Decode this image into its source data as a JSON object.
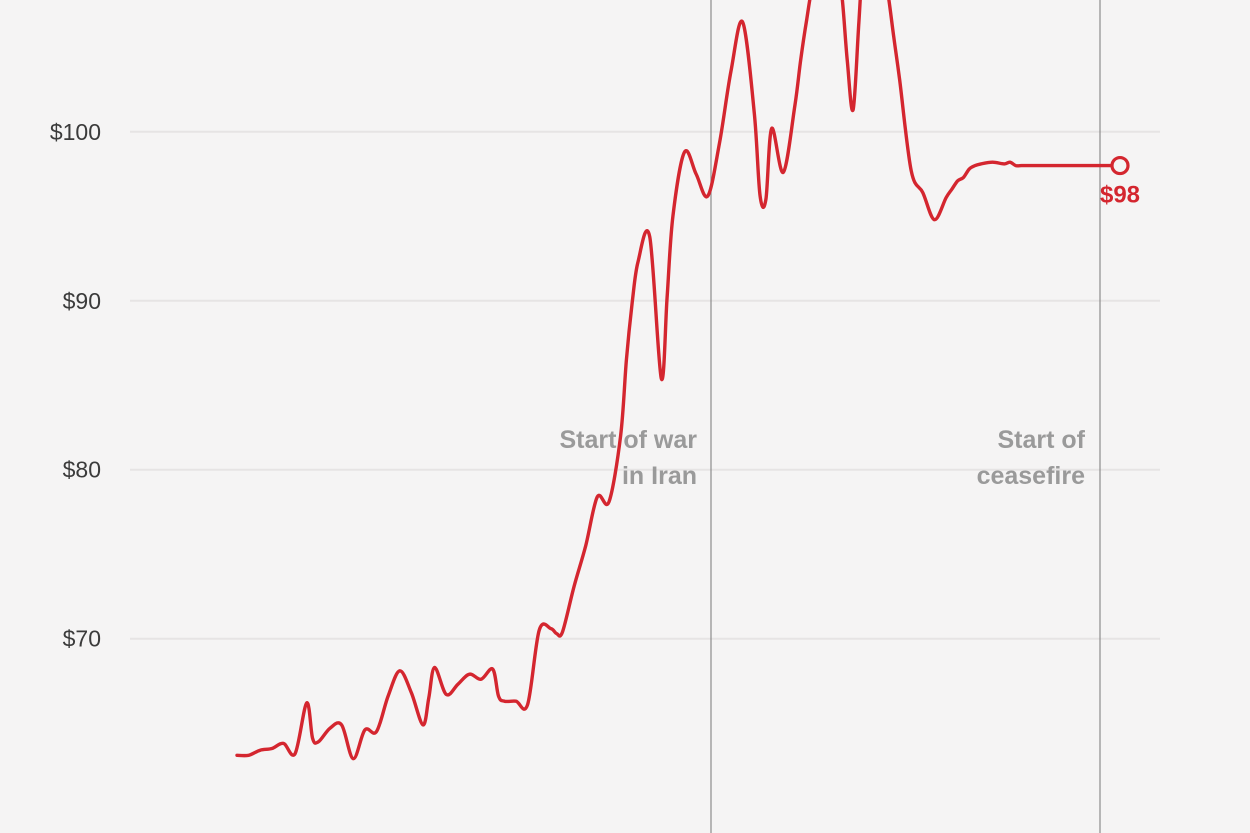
{
  "chart_data": {
    "type": "line",
    "title": "",
    "xlabel": "",
    "ylabel": "",
    "ylim": [
      58.5,
      107.8
    ],
    "yticks": [
      {
        "value": 70,
        "label": "$70"
      },
      {
        "value": 80,
        "label": "$80"
      },
      {
        "value": 90,
        "label": "$90"
      },
      {
        "value": 100,
        "label": "$100"
      }
    ],
    "grid": "horizontal",
    "series": [
      {
        "color": "#d4262f",
        "x": [
          0,
          4,
          8,
          12,
          16,
          20,
          24,
          26,
          28,
          32,
          36,
          40,
          44,
          48,
          52,
          56,
          60,
          64,
          66,
          68,
          72,
          76,
          80,
          84,
          88,
          90,
          92,
          96,
          100,
          104,
          108,
          110,
          112,
          116,
          120,
          124,
          128,
          132,
          134,
          136,
          138,
          142,
          146,
          148,
          150,
          154,
          158,
          162,
          166,
          170,
          174,
          178,
          180,
          182,
          184,
          188,
          192,
          194,
          196,
          198,
          200,
          202,
          204,
          206,
          208,
          210,
          212,
          214,
          216,
          218,
          220,
          222,
          224,
          226,
          228,
          232,
          236,
          240,
          244,
          246,
          248,
          250,
          252,
          254,
          256,
          260,
          264,
          266,
          268,
          270,
          272,
          274,
          276,
          280,
          282,
          284,
          286,
          288,
          290,
          292,
          294,
          296,
          298,
          300,
          302
        ],
        "values": [
          63.1,
          63.1,
          63.4,
          63.5,
          63.8,
          63.2,
          66.2,
          64.1,
          63.9,
          64.7,
          64.9,
          62.9,
          64.6,
          64.5,
          66.6,
          68.1,
          66.8,
          64.9,
          66.5,
          68.3,
          66.7,
          67.3,
          67.9,
          67.6,
          68.2,
          66.6,
          66.3,
          66.3,
          66.1,
          70.5,
          70.6,
          70.3,
          70.4,
          73.1,
          75.5,
          78.4,
          78.1,
          82.0,
          86.5,
          89.9,
          92.3,
          93.8,
          85.4,
          90.2,
          95.0,
          98.8,
          97.5,
          96.2,
          99.3,
          103.6,
          106.5,
          101.1,
          96.2,
          96.0,
          100.2,
          97.6,
          101.6,
          104.3,
          106.6,
          108.6,
          108.9,
          108.3,
          109.2,
          108.9,
          108.3,
          104.2,
          101.3,
          106.5,
          112.0,
          113.6,
          112.9,
          110.0,
          108.2,
          105.6,
          103.1,
          97.7,
          96.4,
          94.8,
          96.1,
          96.6,
          97.1,
          97.3,
          97.8,
          98.0,
          98.1,
          98.2,
          98.1,
          98.2,
          98.0,
          98.0,
          98.0,
          98.0,
          98.0,
          98.0,
          98.0,
          98.0,
          98.0,
          98.0,
          98.0,
          98.0,
          98.0,
          98.0,
          98.0,
          98.0,
          98.0
        ],
        "end_value": 98,
        "end_label": "$98"
      }
    ],
    "annotations": [
      {
        "line1": "Start of war",
        "line2": "in Iran"
      },
      {
        "line1": "Start of",
        "line2": "ceasefire"
      }
    ]
  }
}
